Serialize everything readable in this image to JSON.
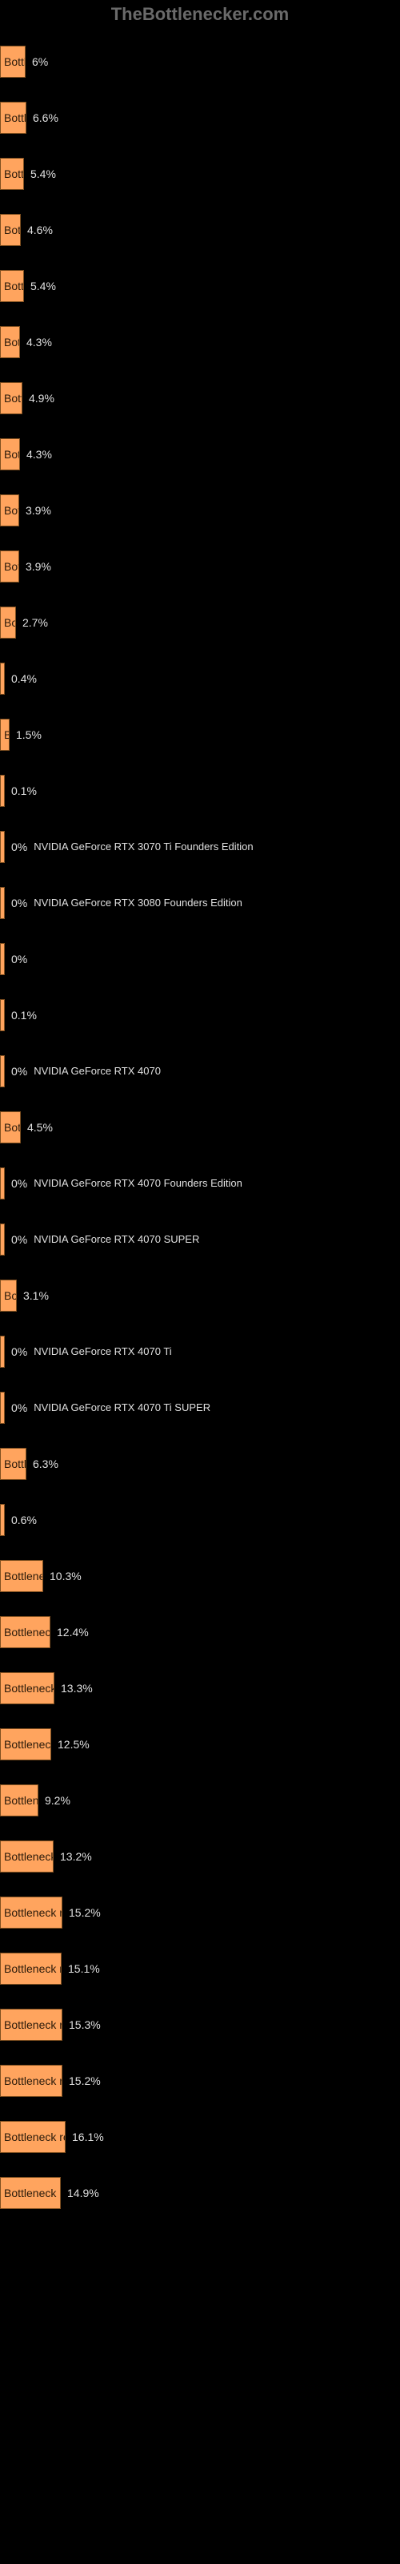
{
  "logo_text": "TheBottlenecker.com",
  "chart": {
    "type": "bar",
    "orientation": "horizontal",
    "bar_color": "#ffa45e",
    "bar_border_color": "#805020",
    "background_color": "#000000",
    "text_color": "#ffffff",
    "bar_label_prefix": "Bottleneck result for ",
    "max_value": 28,
    "items": [
      {
        "pct": 6.0,
        "width": 32,
        "side_label": ""
      },
      {
        "pct": 6.6,
        "width": 33,
        "side_label": ""
      },
      {
        "pct": 5.4,
        "width": 30,
        "side_label": ""
      },
      {
        "pct": 4.6,
        "width": 26,
        "side_label": ""
      },
      {
        "pct": 5.4,
        "width": 30,
        "side_label": ""
      },
      {
        "pct": 4.3,
        "width": 25,
        "side_label": ""
      },
      {
        "pct": 4.9,
        "width": 28,
        "side_label": ""
      },
      {
        "pct": 4.3,
        "width": 25,
        "side_label": ""
      },
      {
        "pct": 3.9,
        "width": 24,
        "side_label": ""
      },
      {
        "pct": 3.9,
        "width": 24,
        "side_label": ""
      },
      {
        "pct": 2.7,
        "width": 20,
        "side_label": ""
      },
      {
        "pct": 0.4,
        "width": 4,
        "side_label": ""
      },
      {
        "pct": 1.5,
        "width": 12,
        "side_label": ""
      },
      {
        "pct": 0.1,
        "width": 2,
        "side_label": ""
      },
      {
        "pct": 0.0,
        "width": 2,
        "side_label": "NVIDIA GeForce RTX 3070 Ti Founders Edition"
      },
      {
        "pct": 0.0,
        "width": 2,
        "side_label": "NVIDIA GeForce RTX 3080 Founders Edition"
      },
      {
        "pct": 0.0,
        "width": 2,
        "side_label": ""
      },
      {
        "pct": 0.1,
        "width": 2,
        "side_label": ""
      },
      {
        "pct": 0.0,
        "width": 2,
        "side_label": "NVIDIA GeForce RTX 4070"
      },
      {
        "pct": 4.5,
        "width": 26,
        "side_label": ""
      },
      {
        "pct": 0.0,
        "width": 2,
        "side_label": "NVIDIA GeForce RTX 4070 Founders Edition"
      },
      {
        "pct": 0.0,
        "width": 2,
        "side_label": "NVIDIA GeForce RTX 4070 SUPER"
      },
      {
        "pct": 3.1,
        "width": 21,
        "side_label": ""
      },
      {
        "pct": 0.0,
        "width": 2,
        "side_label": "NVIDIA GeForce RTX 4070 Ti"
      },
      {
        "pct": 0.0,
        "width": 2,
        "side_label": "NVIDIA GeForce RTX 4070 Ti SUPER"
      },
      {
        "pct": 6.3,
        "width": 33,
        "side_label": ""
      },
      {
        "pct": 0.6,
        "width": 5,
        "side_label": ""
      },
      {
        "pct": 10.3,
        "width": 54,
        "side_label": ""
      },
      {
        "pct": 12.4,
        "width": 63,
        "side_label": ""
      },
      {
        "pct": 13.3,
        "width": 68,
        "side_label": ""
      },
      {
        "pct": 12.5,
        "width": 64,
        "side_label": ""
      },
      {
        "pct": 9.2,
        "width": 48,
        "side_label": ""
      },
      {
        "pct": 13.2,
        "width": 67,
        "side_label": ""
      },
      {
        "pct": 15.2,
        "width": 78,
        "side_label": ""
      },
      {
        "pct": 15.1,
        "width": 77,
        "side_label": ""
      },
      {
        "pct": 15.3,
        "width": 78,
        "side_label": ""
      },
      {
        "pct": 15.2,
        "width": 78,
        "side_label": ""
      },
      {
        "pct": 16.1,
        "width": 82,
        "side_label": ""
      },
      {
        "pct": 14.9,
        "width": 76,
        "side_label": ""
      }
    ]
  }
}
